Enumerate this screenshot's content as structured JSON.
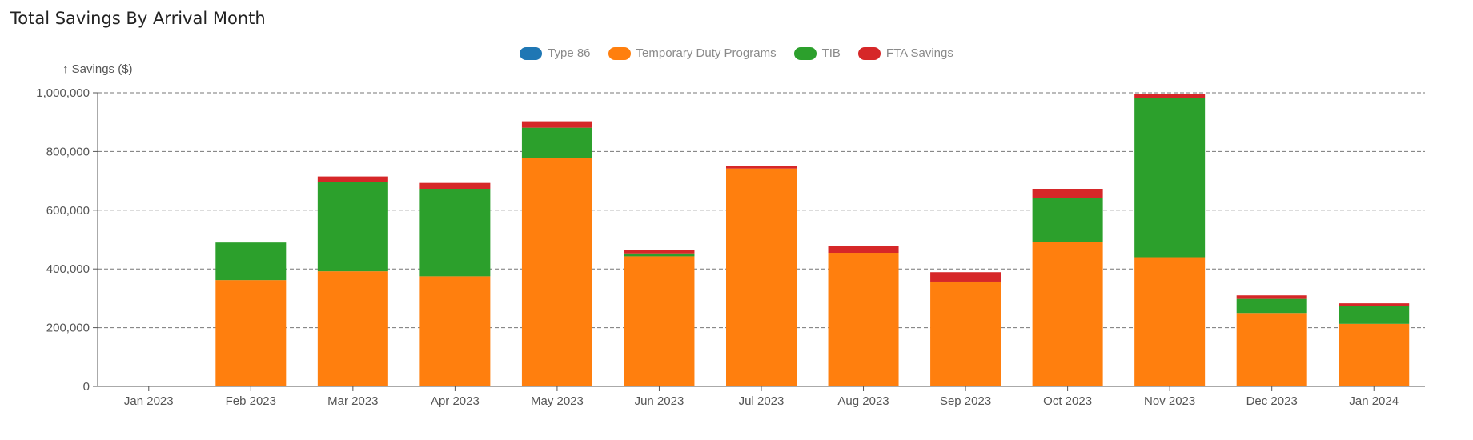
{
  "title": "Total Savings By Arrival Month",
  "chart_data": {
    "type": "bar",
    "stacked": true,
    "title": "Total Savings By Arrival Month",
    "ylabel": "↑ Savings ($)",
    "xlabel": "",
    "ylim": [
      0,
      1000000
    ],
    "yticks": [
      "0",
      "200,000",
      "400,000",
      "600,000",
      "800,000",
      "1,000,000"
    ],
    "grid": true,
    "legend_position": "top-center",
    "categories": [
      "Jan 2023",
      "Feb 2023",
      "Mar 2023",
      "Apr 2023",
      "May 2023",
      "Jun 2023",
      "Jul 2023",
      "Aug 2023",
      "Sep 2023",
      "Oct 2023",
      "Nov 2023",
      "Dec 2023",
      "Jan 2024"
    ],
    "series": [
      {
        "name": "Type 86",
        "color": "#1f77b4",
        "values": [
          0,
          0,
          0,
          0,
          0,
          0,
          0,
          0,
          0,
          0,
          0,
          0,
          0
        ]
      },
      {
        "name": "Temporary Duty Programs",
        "color": "#ff7f0e",
        "values": [
          0,
          362000,
          392000,
          375000,
          778000,
          443000,
          742000,
          455000,
          357000,
          493000,
          440000,
          250000,
          213000
        ]
      },
      {
        "name": "TIB",
        "color": "#2ca02c",
        "values": [
          0,
          128000,
          305000,
          298000,
          103000,
          10000,
          0,
          0,
          0,
          150000,
          542000,
          48000,
          62000
        ]
      },
      {
        "name": "FTA Savings",
        "color": "#d62728",
        "values": [
          0,
          0,
          18000,
          20000,
          22000,
          12000,
          10000,
          22000,
          32000,
          30000,
          14000,
          12000,
          8000
        ]
      }
    ]
  }
}
